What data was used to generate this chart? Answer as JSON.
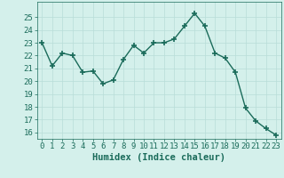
{
  "x": [
    0,
    1,
    2,
    3,
    4,
    5,
    6,
    7,
    8,
    9,
    10,
    11,
    12,
    13,
    14,
    15,
    16,
    17,
    18,
    19,
    20,
    21,
    22,
    23
  ],
  "y": [
    23.0,
    21.2,
    22.2,
    22.0,
    20.7,
    20.8,
    19.8,
    20.1,
    21.7,
    22.8,
    22.2,
    23.0,
    23.0,
    23.3,
    24.3,
    25.3,
    24.3,
    22.2,
    21.8,
    20.7,
    17.9,
    16.9,
    16.3,
    15.8
  ],
  "line_color": "#1a6b5a",
  "marker": "+",
  "marker_size": 4,
  "marker_linewidth": 1.2,
  "bg_color": "#d4f0eb",
  "grid_color": "#b8ddd8",
  "xlabel": "Humidex (Indice chaleur)",
  "ylim": [
    15.5,
    26.2
  ],
  "xlim": [
    -0.5,
    23.5
  ],
  "yticks": [
    16,
    17,
    18,
    19,
    20,
    21,
    22,
    23,
    24,
    25
  ],
  "xticks": [
    0,
    1,
    2,
    3,
    4,
    5,
    6,
    7,
    8,
    9,
    10,
    11,
    12,
    13,
    14,
    15,
    16,
    17,
    18,
    19,
    20,
    21,
    22,
    23
  ],
  "tick_fontsize": 6.5,
  "xlabel_fontsize": 7.5,
  "tick_color": "#1a6b5a",
  "axis_color": "#1a6b5a",
  "line_width": 1.0
}
